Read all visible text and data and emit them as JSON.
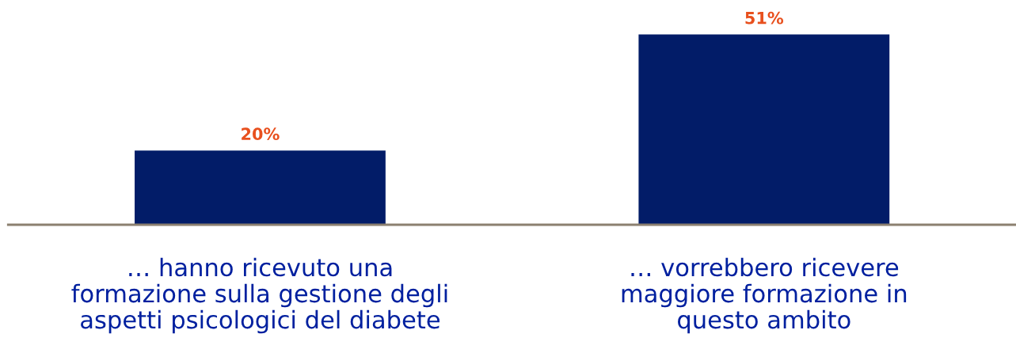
{
  "chart_data": {
    "type": "bar",
    "categories": [
      "… hanno ricevuto una\nformazione sulla gestione degli\naspetti psicologici del diabete",
      "… vorrebbero ricevere\nmaggiore formazione in\nquesto ambito"
    ],
    "values": [
      20,
      51
    ],
    "value_labels": [
      "20%",
      "51%"
    ],
    "color": "#021c68",
    "grid": false,
    "legend": false
  }
}
